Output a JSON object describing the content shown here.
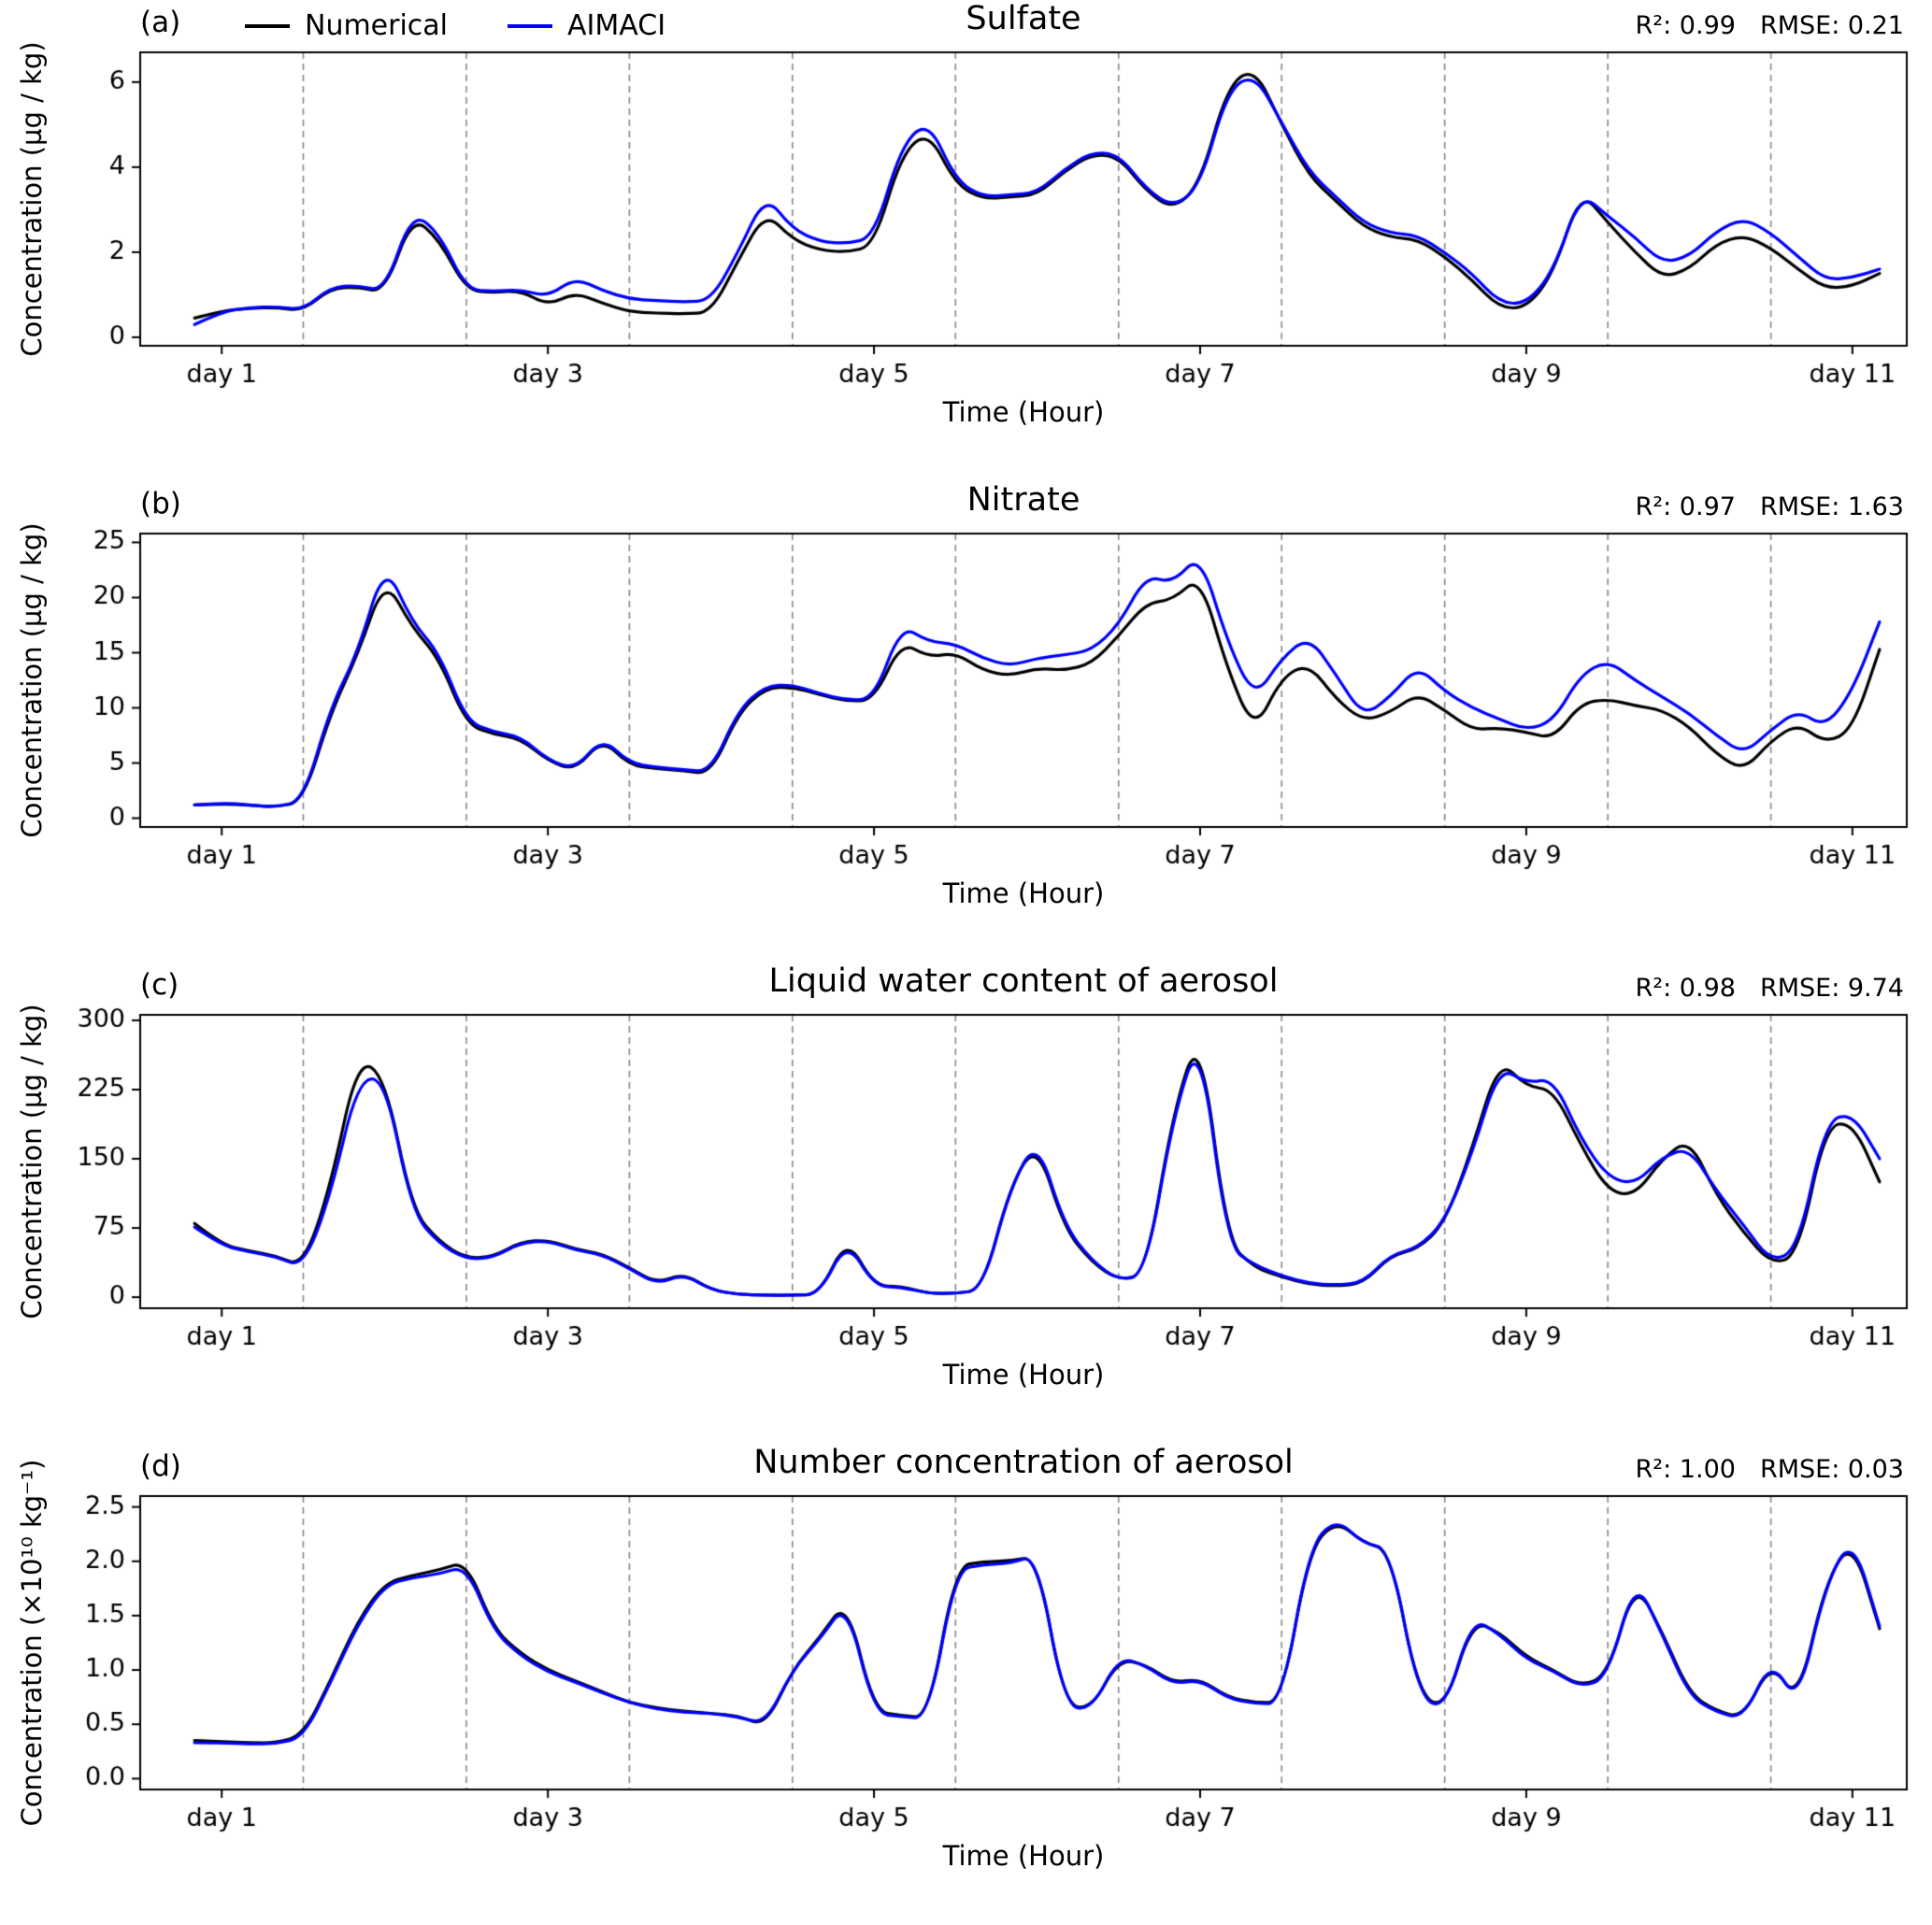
{
  "chart_data": {
    "type": "line",
    "x_label": "Time (Hour)",
    "xlim": [
      0,
      260
    ],
    "x_ticks": {
      "hours": [
        12,
        60,
        108,
        156,
        204,
        252
      ],
      "labels": [
        "day 1",
        "day 3",
        "day 5",
        "day 7",
        "day 9",
        "day 11"
      ]
    },
    "gridline_hours": [
      24,
      48,
      72,
      96,
      120,
      144,
      168,
      192,
      216,
      240
    ],
    "gridline_color": "#888888",
    "series": [
      {
        "label": "Numerical",
        "color": "#000000"
      },
      {
        "label": "AIMACI",
        "color": "#0000ff"
      }
    ],
    "x_hours": [
      8,
      12,
      16,
      20,
      24,
      28,
      32,
      36,
      40,
      44,
      48,
      52,
      56,
      60,
      64,
      68,
      72,
      76,
      80,
      84,
      88,
      92,
      96,
      100,
      104,
      108,
      112,
      116,
      120,
      124,
      128,
      132,
      136,
      140,
      144,
      148,
      152,
      156,
      160,
      164,
      168,
      172,
      176,
      180,
      184,
      188,
      192,
      196,
      200,
      204,
      208,
      212,
      216,
      220,
      224,
      228,
      232,
      236,
      240,
      244,
      248,
      252,
      256
    ],
    "panels": [
      {
        "id": "a",
        "letter": "(a)",
        "title": "Sulfate",
        "r2_label": "R²: 0.99",
        "rmse_label": "RMSE: 0.21",
        "ylabel": "Concentration (µg / kg)",
        "ylim": [
          -0.2,
          6.7
        ],
        "ytick_values": [
          0,
          2,
          4,
          6
        ],
        "ytick_labels": [
          "0",
          "2",
          "4",
          "6"
        ],
        "numerical": [
          0.45,
          0.62,
          0.68,
          0.7,
          0.62,
          1.15,
          1.18,
          1.05,
          2.85,
          2.3,
          1.1,
          1.05,
          1.1,
          0.75,
          1.05,
          0.8,
          0.6,
          0.57,
          0.55,
          0.58,
          1.8,
          2.95,
          2.3,
          2.05,
          2.0,
          2.15,
          4.3,
          4.85,
          3.6,
          3.25,
          3.3,
          3.35,
          3.9,
          4.3,
          4.25,
          3.45,
          3.0,
          3.6,
          5.9,
          6.35,
          5.0,
          3.8,
          3.2,
          2.6,
          2.35,
          2.3,
          1.9,
          1.35,
          0.7,
          0.68,
          1.5,
          3.45,
          2.7,
          2.0,
          1.4,
          1.6,
          2.2,
          2.4,
          2.1,
          1.6,
          1.15,
          1.2,
          1.5
        ],
        "aimaci": [
          0.3,
          0.6,
          0.7,
          0.72,
          0.64,
          1.18,
          1.22,
          1.08,
          2.95,
          2.45,
          1.12,
          1.08,
          1.12,
          0.95,
          1.4,
          1.1,
          0.9,
          0.86,
          0.83,
          0.86,
          2.0,
          3.35,
          2.55,
          2.25,
          2.2,
          2.35,
          4.5,
          5.1,
          3.7,
          3.3,
          3.35,
          3.4,
          3.95,
          4.35,
          4.3,
          3.5,
          3.05,
          3.55,
          5.8,
          6.2,
          5.05,
          3.9,
          3.3,
          2.7,
          2.45,
          2.4,
          2.0,
          1.5,
          0.82,
          0.78,
          1.55,
          3.4,
          2.85,
          2.35,
          1.75,
          1.9,
          2.5,
          2.8,
          2.45,
          1.9,
          1.35,
          1.4,
          1.6
        ]
      },
      {
        "id": "b",
        "letter": "(b)",
        "title": "Nitrate",
        "r2_label": "R²: 0.97",
        "rmse_label": "RMSE: 1.63",
        "ylabel": "Concentration (µg / kg)",
        "ylim": [
          -0.8,
          25.8
        ],
        "ytick_values": [
          0,
          5,
          10,
          15,
          20,
          25
        ],
        "ytick_labels": [
          "0",
          "5",
          "10",
          "15",
          "20",
          "25"
        ],
        "numerical": [
          1.2,
          1.3,
          1.2,
          1.0,
          1.5,
          9.5,
          14.8,
          21.8,
          17.3,
          14.5,
          8.5,
          7.6,
          7.2,
          5.2,
          4.3,
          7.2,
          4.8,
          4.5,
          4.3,
          4.0,
          9.5,
          11.8,
          11.9,
          11.2,
          10.6,
          10.7,
          16.0,
          14.6,
          15.0,
          13.4,
          12.9,
          13.6,
          13.4,
          14.0,
          16.5,
          19.5,
          19.8,
          22.0,
          13.5,
          7.8,
          12.8,
          14.0,
          10.8,
          8.8,
          9.6,
          11.3,
          9.8,
          8.0,
          8.2,
          7.8,
          7.2,
          10.4,
          10.8,
          10.2,
          9.8,
          8.3,
          5.8,
          4.3,
          7.0,
          8.6,
          6.8,
          8.0,
          15.3
        ],
        "aimaci": [
          1.2,
          1.4,
          1.2,
          1.0,
          1.6,
          10.0,
          15.0,
          23.2,
          17.8,
          15.0,
          8.8,
          7.8,
          7.4,
          5.3,
          4.4,
          7.3,
          5.0,
          4.6,
          4.4,
          4.2,
          9.8,
          12.0,
          12.1,
          11.3,
          10.7,
          10.8,
          17.5,
          16.0,
          15.8,
          14.5,
          13.8,
          14.5,
          14.8,
          15.2,
          17.5,
          22.0,
          21.3,
          24.0,
          16.0,
          10.8,
          14.5,
          16.5,
          13.0,
          9.2,
          11.0,
          13.8,
          11.5,
          10.0,
          9.0,
          8.0,
          8.8,
          13.0,
          14.3,
          12.5,
          11.0,
          9.5,
          7.5,
          5.8,
          8.0,
          9.8,
          8.2,
          11.5,
          17.8
        ]
      },
      {
        "id": "c",
        "letter": "(c)",
        "title": "Liquid water content of aerosol",
        "r2_label": "R²: 0.98",
        "rmse_label": "RMSE: 9.74",
        "ylabel": "Concentration (µg / kg)",
        "ylim": [
          -12,
          306
        ],
        "ytick_values": [
          0,
          75,
          150,
          225,
          300
        ],
        "ytick_labels": [
          "0",
          "75",
          "150",
          "225",
          "300"
        ],
        "numerical": [
          80,
          57,
          50,
          45,
          33,
          120,
          258,
          240,
          95,
          60,
          42,
          44,
          60,
          62,
          52,
          47,
          32,
          15,
          26,
          8,
          3,
          2,
          2,
          3,
          65,
          12,
          12,
          4,
          4,
          8,
          120,
          168,
          75,
          38,
          18,
          25,
          200,
          290,
          60,
          32,
          22,
          14,
          12,
          15,
          45,
          52,
          80,
          160,
          258,
          228,
          225,
          165,
          115,
          110,
          150,
          172,
          110,
          70,
          36,
          45,
          185,
          190,
          125
        ],
        "aimaci": [
          76,
          56,
          49,
          44,
          32,
          110,
          235,
          238,
          92,
          58,
          41,
          43,
          59,
          61,
          51,
          46,
          31,
          14,
          25,
          8,
          3,
          2,
          2,
          3,
          62,
          12,
          11,
          4,
          4,
          8,
          118,
          172,
          78,
          40,
          18,
          25,
          195,
          285,
          55,
          35,
          23,
          15,
          13,
          16,
          46,
          53,
          82,
          155,
          250,
          232,
          237,
          172,
          130,
          122,
          152,
          162,
          115,
          78,
          38,
          52,
          190,
          200,
          150
        ]
      },
      {
        "id": "d",
        "letter": "(d)",
        "title": "Number concentration of aerosol",
        "r2_label": "R²: 1.00",
        "rmse_label": "RMSE: 0.03",
        "ylabel": "Concentration (×10¹⁰ kg⁻¹)",
        "ylim": [
          -0.1,
          2.6
        ],
        "ytick_values": [
          0.0,
          0.5,
          1.0,
          1.5,
          2.0,
          2.5
        ],
        "ytick_labels": [
          "0.0",
          "0.5",
          "1.0",
          "1.5",
          "2.0",
          "2.5"
        ],
        "numerical": [
          0.35,
          0.34,
          0.33,
          0.33,
          0.4,
          0.9,
          1.45,
          1.8,
          1.87,
          1.92,
          2.0,
          1.38,
          1.15,
          1.0,
          0.9,
          0.8,
          0.7,
          0.65,
          0.62,
          0.6,
          0.58,
          0.48,
          1.0,
          1.3,
          1.65,
          0.62,
          0.58,
          0.56,
          1.95,
          2.0,
          2.0,
          2.05,
          0.68,
          0.64,
          1.1,
          1.05,
          0.88,
          0.92,
          0.75,
          0.7,
          0.7,
          2.1,
          2.38,
          2.17,
          2.1,
          0.8,
          0.63,
          1.45,
          1.35,
          1.12,
          1.0,
          0.85,
          0.95,
          1.82,
          1.35,
          0.78,
          0.62,
          0.56,
          1.08,
          0.7,
          1.8,
          2.2,
          1.38
        ],
        "aimaci": [
          0.33,
          0.33,
          0.32,
          0.32,
          0.38,
          0.88,
          1.42,
          1.78,
          1.85,
          1.88,
          1.96,
          1.36,
          1.13,
          0.98,
          0.89,
          0.79,
          0.7,
          0.64,
          0.61,
          0.6,
          0.57,
          0.5,
          1.0,
          1.28,
          1.63,
          0.6,
          0.57,
          0.55,
          1.92,
          1.97,
          1.98,
          2.06,
          0.67,
          0.63,
          1.12,
          1.04,
          0.87,
          0.91,
          0.74,
          0.69,
          0.69,
          2.12,
          2.4,
          2.16,
          2.12,
          0.78,
          0.62,
          1.48,
          1.33,
          1.1,
          0.99,
          0.84,
          0.93,
          1.85,
          1.33,
          0.76,
          0.61,
          0.55,
          1.1,
          0.68,
          1.78,
          2.23,
          1.4
        ]
      }
    ]
  }
}
